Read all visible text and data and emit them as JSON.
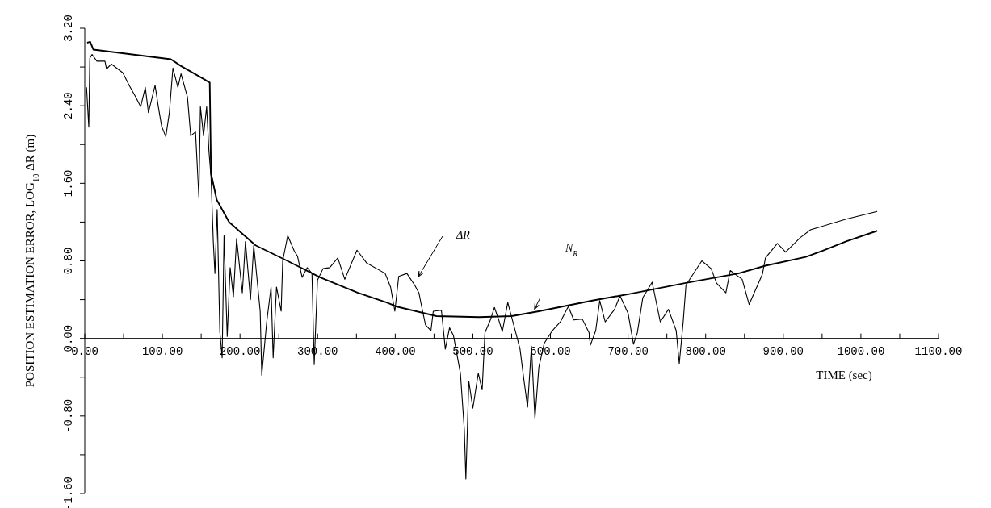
{
  "chart_data": {
    "type": "line",
    "xlabel": "TIME (sec)",
    "ylabel": "POSITION ESTIMATION ERROR, LOG$_{10}$ ΔR (m)",
    "xlim": [
      0,
      1100
    ],
    "ylim": [
      -1.6,
      3.2
    ],
    "xticks": [
      {
        "value": 0,
        "label": "0.00"
      },
      {
        "value": 50,
        "label": null
      },
      {
        "value": 100,
        "label": "100.00"
      },
      {
        "value": 150,
        "label": null
      },
      {
        "value": 200,
        "label": "200.00"
      },
      {
        "value": 250,
        "label": null
      },
      {
        "value": 300,
        "label": "300.00"
      },
      {
        "value": 350,
        "label": null
      },
      {
        "value": 400,
        "label": "400.00"
      },
      {
        "value": 450,
        "label": null
      },
      {
        "value": 500,
        "label": "500.00"
      },
      {
        "value": 550,
        "label": null
      },
      {
        "value": 600,
        "label": "600.00"
      },
      {
        "value": 650,
        "label": null
      },
      {
        "value": 700,
        "label": "700.00"
      },
      {
        "value": 750,
        "label": null
      },
      {
        "value": 800,
        "label": "800.00"
      },
      {
        "value": 850,
        "label": null
      },
      {
        "value": 900,
        "label": "900.00"
      },
      {
        "value": 950,
        "label": null
      },
      {
        "value": 1000,
        "label": "1000.00"
      },
      {
        "value": 1050,
        "label": null
      },
      {
        "value": 1100,
        "label": "1100.00"
      }
    ],
    "yticks": [
      {
        "value": -1.6,
        "label": "-1.60"
      },
      {
        "value": -1.2,
        "label": null
      },
      {
        "value": -0.8,
        "label": "-0.80"
      },
      {
        "value": -0.4,
        "label": null
      },
      {
        "value": 0,
        "label": "0.00"
      },
      {
        "value": 0.4,
        "label": null
      },
      {
        "value": 0.8,
        "label": "0.80"
      },
      {
        "value": 1.2,
        "label": null
      },
      {
        "value": 1.6,
        "label": "1.60"
      },
      {
        "value": 2.0,
        "label": null
      },
      {
        "value": 2.4,
        "label": "2.40"
      },
      {
        "value": 2.8,
        "label": null
      },
      {
        "value": 3.2,
        "label": "3.20"
      }
    ],
    "grid": false,
    "annotations": [
      "ΔR",
      "N$_{R}$"
    ],
    "series": [
      {
        "color": "#000000",
        "line_style": "solid",
        "x": [
          2.3,
          5.2,
          6.5,
          9.4,
          15.6,
          26,
          28,
          34.4,
          49,
          57.3,
          65.6,
          72,
          78,
          82,
          90.6,
          94.8,
          99,
          104.4,
          109,
          113.6,
          120,
          124,
          132.3,
          136.5,
          142.7,
          147,
          149,
          153,
          157,
          160,
          162.7,
          165.6,
          167.7,
          170.6,
          174,
          177,
          179.4,
          183.5,
          187.3,
          191.5,
          195.6,
          203,
          207,
          213.5,
          217.7,
          226,
          228,
          234.4,
          240,
          242.7,
          247,
          253,
          255,
          261.5,
          270,
          274,
          280,
          286.5,
          292.7,
          295.6,
          299.8,
          307,
          315.6,
          326,
          335,
          350.7,
          363,
          387,
          394,
          399.5,
          404.5,
          415,
          425,
          430.5,
          434,
          439,
          446,
          449,
          459.5,
          464.5,
          470,
          475,
          484,
          489,
          491,
          494.8,
          500,
          507,
          512,
          515.6,
          522.6,
          527.8,
          533,
          538,
          545,
          555.6,
          560.8,
          566,
          570.5,
          575.5,
          580,
          585,
          592,
          602.4,
          612.8,
          623,
          630,
          641,
          649.7,
          651.4,
          658.3,
          663.5,
          670.5,
          682.6,
          689.6,
          700,
          707,
          712,
          719,
          731,
          741.5,
          752,
          762,
          766,
          771,
          774.6,
          795,
          807,
          814,
          826,
          831.6,
          847,
          856,
          873,
          877,
          892.4,
          903,
          922,
          935,
          981,
          1021
        ],
        "values": [
          2.59,
          2.18,
          2.89,
          2.93,
          2.86,
          2.86,
          2.78,
          2.83,
          2.74,
          2.61,
          2.49,
          2.39,
          2.59,
          2.33,
          2.61,
          2.39,
          2.19,
          2.08,
          2.33,
          2.79,
          2.59,
          2.73,
          2.49,
          2.09,
          2.13,
          1.46,
          2.39,
          2.09,
          2.39,
          1.93,
          1.66,
          1.0,
          0.67,
          1.33,
          0.07,
          -0.2,
          1.06,
          0.02,
          0.73,
          0.43,
          1.03,
          0.47,
          1.0,
          0.4,
          0.96,
          0.28,
          -0.38,
          0.17,
          0.53,
          -0.2,
          0.53,
          0.28,
          0.8,
          1.06,
          0.9,
          0.85,
          0.63,
          0.73,
          0.67,
          -0.27,
          0.6,
          0.72,
          0.73,
          0.83,
          0.61,
          0.91,
          0.78,
          0.67,
          0.53,
          0.28,
          0.64,
          0.67,
          0.55,
          0.47,
          0.33,
          0.14,
          0.08,
          0.28,
          0.29,
          -0.11,
          0.11,
          0.03,
          -0.36,
          -0.94,
          -1.45,
          -0.44,
          -0.72,
          -0.36,
          -0.53,
          0.06,
          0.19,
          0.32,
          0.2,
          0.07,
          0.37,
          0.05,
          -0.11,
          -0.44,
          -0.71,
          -0.08,
          -0.83,
          -0.3,
          -0.05,
          0.08,
          0.17,
          0.33,
          0.19,
          0.2,
          0.06,
          -0.07,
          0.08,
          0.39,
          0.17,
          0.3,
          0.44,
          0.26,
          -0.06,
          0.06,
          0.42,
          0.58,
          0.17,
          0.3,
          0.08,
          -0.26,
          0.17,
          0.55,
          0.8,
          0.72,
          0.57,
          0.47,
          0.7,
          0.61,
          0.35,
          0.66,
          0.83,
          0.98,
          0.89,
          1.04,
          1.12,
          1.23,
          1.31
        ]
      },
      {
        "color": "#000000",
        "line_style": "solid",
        "x": [
          3,
          7,
          11,
          111,
          124,
          161,
          162.7,
          170,
          186,
          220,
          261,
          303,
          352,
          389,
          401,
          453,
          508,
          550,
          585,
          654,
          703,
          773,
          842,
          877,
          929,
          946,
          981,
          1021
        ],
        "values": [
          3.05,
          3.06,
          2.98,
          2.88,
          2.81,
          2.64,
          1.7,
          1.43,
          1.2,
          0.96,
          0.8,
          0.63,
          0.47,
          0.37,
          0.33,
          0.23,
          0.22,
          0.23,
          0.28,
          0.39,
          0.46,
          0.57,
          0.67,
          0.75,
          0.84,
          0.89,
          1.0,
          1.11
        ]
      }
    ]
  }
}
